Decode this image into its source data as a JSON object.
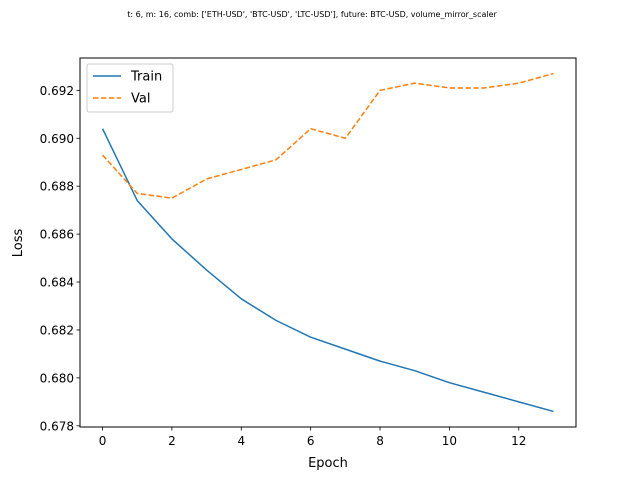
{
  "chart_data": {
    "type": "line",
    "title": "t: 6, m: 16, comb: ['ETH-USD', 'BTC-USD', 'LTC-USD'], future: BTC-USD, volume_mirror_scaler",
    "xlabel": "Epoch",
    "ylabel": "Loss",
    "x": [
      0,
      1,
      2,
      3,
      4,
      5,
      6,
      7,
      8,
      9,
      10,
      11,
      12,
      13
    ],
    "xlim": [
      -0.65,
      13.65
    ],
    "ylim": [
      0.67795,
      0.69335
    ],
    "xticks": [
      0,
      2,
      4,
      6,
      8,
      10,
      12
    ],
    "xtick_labels": [
      "0",
      "2",
      "4",
      "6",
      "8",
      "10",
      "12"
    ],
    "yticks": [
      0.678,
      0.68,
      0.682,
      0.684,
      0.686,
      0.688,
      0.69,
      0.692
    ],
    "ytick_labels": [
      "0.678",
      "0.680",
      "0.682",
      "0.684",
      "0.686",
      "0.688",
      "0.690",
      "0.692"
    ],
    "legend_position": "top-left",
    "grid": false,
    "series": [
      {
        "name": "Train",
        "color": "#1f77b4",
        "style": "solid",
        "values": [
          0.6904,
          0.6874,
          0.6858,
          0.6845,
          0.6833,
          0.6824,
          0.6817,
          0.6812,
          0.6807,
          0.6803,
          0.6798,
          0.6794,
          0.679,
          0.6786
        ]
      },
      {
        "name": "Val",
        "color": "#ff7f0e",
        "style": "dashed",
        "values": [
          0.6893,
          0.6877,
          0.6875,
          0.6883,
          0.6887,
          0.6891,
          0.6904,
          0.69,
          0.692,
          0.6923,
          0.6921,
          0.6921,
          0.6923,
          0.6927
        ]
      }
    ]
  }
}
